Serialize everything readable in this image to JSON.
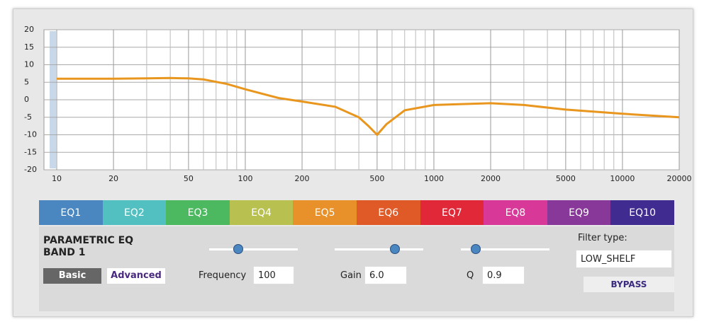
{
  "chart_data": {
    "type": "line",
    "log_x": true,
    "grid": true,
    "xlim": [
      10,
      20000
    ],
    "ylim": [
      -20,
      20
    ],
    "xticks": [
      10,
      20,
      50,
      100,
      200,
      500,
      1000,
      2000,
      5000,
      10000,
      20000
    ],
    "xminor": [
      30,
      40,
      60,
      70,
      80,
      90,
      300,
      400,
      600,
      700,
      800,
      900,
      3000,
      4000,
      6000,
      7000,
      8000,
      9000
    ],
    "yticks": [
      -20,
      -15,
      -10,
      -5,
      0,
      5,
      10,
      15,
      20
    ],
    "series": [
      {
        "color": "#e8961e",
        "x": [
          10,
          20,
          30,
          40,
          50,
          60,
          80,
          100,
          150,
          200,
          300,
          400,
          450,
          500,
          560,
          700,
          1000,
          2000,
          3000,
          5000,
          10000,
          20000
        ],
        "values": [
          6,
          6,
          6.1,
          6.2,
          6.1,
          5.8,
          4.5,
          3,
          0.5,
          -0.5,
          -2,
          -5,
          -7.5,
          -10,
          -7,
          -3,
          -1.5,
          -1,
          -1.5,
          -2.8,
          -4,
          -5
        ]
      }
    ]
  },
  "tabs": [
    {
      "label": "EQ1",
      "color": "#4a86c0"
    },
    {
      "label": "EQ2",
      "color": "#52c0c0"
    },
    {
      "label": "EQ3",
      "color": "#4cb860"
    },
    {
      "label": "EQ4",
      "color": "#b8c050"
    },
    {
      "label": "EQ5",
      "color": "#e8902a"
    },
    {
      "label": "EQ6",
      "color": "#e05a28"
    },
    {
      "label": "EQ7",
      "color": "#e02838"
    },
    {
      "label": "EQ8",
      "color": "#d83898"
    },
    {
      "label": "EQ9",
      "color": "#883898"
    },
    {
      "label": "EQ10",
      "color": "#402c90"
    }
  ],
  "panel": {
    "title": [
      "PARAMETRIC EQ",
      "BAND 1"
    ],
    "basic": "Basic",
    "advanced": "Advanced",
    "frequency_label": "Frequency",
    "frequency": "100",
    "gain_label": "Gain",
    "gain": "6.0",
    "q_label": "Q",
    "q": "0.9",
    "filter_type_label": "Filter type:",
    "filter_type": "LOW_SHELF",
    "bypass": "BYPASS"
  }
}
